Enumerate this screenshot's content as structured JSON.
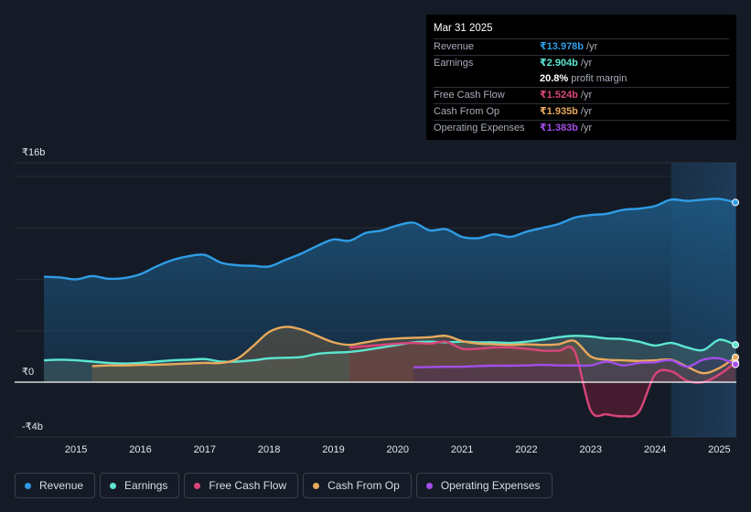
{
  "colors": {
    "revenue": "#2f9de6",
    "earnings": "#5ce6d0",
    "free_cash_flow": "#d8457a",
    "cash_from_op": "#e8a95c",
    "operating_expenses": "#a24ee8"
  },
  "tooltip": {
    "date": "Mar 31 2025",
    "rows": [
      {
        "label": "Revenue",
        "value": "₹13.978b",
        "unit": "/yr"
      },
      {
        "label": "Earnings",
        "value": "₹2.904b",
        "unit": "/yr"
      },
      {
        "label": "",
        "value": "20.8%",
        "unit": "profit margin"
      },
      {
        "label": "Free Cash Flow",
        "value": "₹1.524b",
        "unit": "/yr"
      },
      {
        "label": "Cash From Op",
        "value": "₹1.935b",
        "unit": "/yr"
      },
      {
        "label": "Operating Expenses",
        "value": "₹1.383b",
        "unit": "/yr"
      }
    ]
  },
  "legend": [
    {
      "label": "Revenue",
      "key": "revenue"
    },
    {
      "label": "Earnings",
      "key": "earnings"
    },
    {
      "label": "Free Cash Flow",
      "key": "free_cash_flow"
    },
    {
      "label": "Cash From Op",
      "key": "cash_from_op"
    },
    {
      "label": "Operating Expenses",
      "key": "operating_expenses"
    }
  ],
  "chart_data": {
    "type": "area",
    "title": "",
    "xlabel": "",
    "ylabel": "",
    "y_axis_labels": [
      "₹16b",
      "₹0",
      "-₹4b"
    ],
    "y_axis_values": [
      16,
      0,
      -4
    ],
    "ylim": [
      -4,
      16
    ],
    "xlim": [
      2014.5,
      2025.25
    ],
    "x_ticks": [
      "2015",
      "2016",
      "2017",
      "2018",
      "2019",
      "2020",
      "2021",
      "2022",
      "2023",
      "2024",
      "2025"
    ],
    "x_tick_values": [
      2015,
      2016,
      2017,
      2018,
      2019,
      2020,
      2021,
      2022,
      2023,
      2024,
      2025
    ],
    "highlight_from": 2024.25,
    "series": [
      {
        "name": "Revenue",
        "key": "revenue",
        "x": [
          2014.5,
          2014.75,
          2015.0,
          2015.25,
          2015.5,
          2015.75,
          2016.0,
          2016.25,
          2016.5,
          2016.75,
          2017.0,
          2017.25,
          2017.5,
          2017.75,
          2018.0,
          2018.25,
          2018.5,
          2018.75,
          2019.0,
          2019.25,
          2019.5,
          2019.75,
          2020.0,
          2020.25,
          2020.5,
          2020.75,
          2021.0,
          2021.25,
          2021.5,
          2021.75,
          2022.0,
          2022.25,
          2022.5,
          2022.75,
          2023.0,
          2023.25,
          2023.5,
          2023.75,
          2024.0,
          2024.25,
          2024.5,
          2024.75,
          2025.0,
          2025.25
        ],
        "values": [
          8.2,
          8.15,
          8.0,
          8.25,
          8.05,
          8.1,
          8.4,
          9.0,
          9.5,
          9.8,
          9.9,
          9.3,
          9.1,
          9.05,
          9.0,
          9.5,
          10.0,
          10.6,
          11.1,
          11.0,
          11.6,
          11.8,
          12.2,
          12.4,
          11.8,
          11.9,
          11.3,
          11.2,
          11.5,
          11.3,
          11.7,
          12.0,
          12.3,
          12.8,
          13.0,
          13.1,
          13.4,
          13.5,
          13.7,
          14.2,
          14.1,
          14.2,
          14.25,
          13.978
        ]
      },
      {
        "name": "Earnings",
        "key": "earnings",
        "x": [
          2014.5,
          2014.75,
          2015.0,
          2015.25,
          2015.5,
          2015.75,
          2016.0,
          2016.25,
          2016.5,
          2016.75,
          2017.0,
          2017.25,
          2017.5,
          2017.75,
          2018.0,
          2018.25,
          2018.5,
          2018.75,
          2019.0,
          2019.25,
          2019.5,
          2019.75,
          2020.0,
          2020.25,
          2020.5,
          2020.75,
          2021.0,
          2021.25,
          2021.5,
          2021.75,
          2022.0,
          2022.25,
          2022.5,
          2022.75,
          2023.0,
          2023.25,
          2023.5,
          2023.75,
          2024.0,
          2024.25,
          2024.5,
          2024.75,
          2025.0,
          2025.25
        ],
        "values": [
          1.7,
          1.75,
          1.7,
          1.6,
          1.5,
          1.45,
          1.5,
          1.6,
          1.7,
          1.75,
          1.8,
          1.6,
          1.6,
          1.7,
          1.85,
          1.9,
          1.95,
          2.2,
          2.3,
          2.35,
          2.5,
          2.7,
          2.9,
          3.1,
          3.15,
          3.1,
          3.15,
          3.1,
          3.1,
          3.05,
          3.15,
          3.3,
          3.5,
          3.6,
          3.55,
          3.4,
          3.35,
          3.15,
          2.85,
          3.05,
          2.7,
          2.5,
          3.3,
          2.904
        ]
      },
      {
        "name": "Free Cash Flow",
        "key": "free_cash_flow",
        "x": [
          2019.25,
          2019.5,
          2019.75,
          2020.0,
          2020.25,
          2020.5,
          2020.75,
          2021.0,
          2021.25,
          2021.5,
          2021.75,
          2022.0,
          2022.25,
          2022.5,
          2022.75,
          2023.0,
          2023.25,
          2023.5,
          2023.75,
          2024.0,
          2024.25,
          2024.5,
          2024.75,
          2025.0,
          2025.25
        ],
        "values": [
          2.7,
          2.8,
          2.9,
          3.0,
          3.05,
          3.0,
          3.15,
          2.6,
          2.6,
          2.7,
          2.7,
          2.6,
          2.45,
          2.45,
          2.4,
          -2.2,
          -2.5,
          -2.65,
          -2.3,
          0.6,
          0.85,
          0.1,
          0.0,
          0.6,
          1.524
        ]
      },
      {
        "name": "Cash From Op",
        "key": "cash_from_op",
        "x": [
          2015.25,
          2015.5,
          2015.75,
          2016.0,
          2016.25,
          2016.5,
          2016.75,
          2017.0,
          2017.25,
          2017.5,
          2017.75,
          2018.0,
          2018.25,
          2018.5,
          2018.75,
          2019.0,
          2019.25,
          2019.5,
          2019.75,
          2020.0,
          2020.25,
          2020.5,
          2020.75,
          2021.0,
          2021.25,
          2021.5,
          2021.75,
          2022.0,
          2022.25,
          2022.5,
          2022.75,
          2023.0,
          2023.25,
          2023.5,
          2023.75,
          2024.0,
          2024.25,
          2024.5,
          2024.75,
          2025.0,
          2025.25
        ],
        "values": [
          1.25,
          1.3,
          1.3,
          1.35,
          1.35,
          1.4,
          1.45,
          1.5,
          1.5,
          1.8,
          2.8,
          3.9,
          4.3,
          4.1,
          3.6,
          3.1,
          2.9,
          3.1,
          3.3,
          3.4,
          3.45,
          3.5,
          3.6,
          3.2,
          3.0,
          2.95,
          2.9,
          2.95,
          2.9,
          2.95,
          3.2,
          2.0,
          1.75,
          1.7,
          1.65,
          1.7,
          1.75,
          1.2,
          0.7,
          1.1,
          1.935
        ]
      },
      {
        "name": "Operating Expenses",
        "key": "operating_expenses",
        "x": [
          2020.25,
          2020.5,
          2020.75,
          2021.0,
          2021.25,
          2021.5,
          2021.75,
          2022.0,
          2022.25,
          2022.5,
          2022.75,
          2023.0,
          2023.25,
          2023.5,
          2023.75,
          2024.0,
          2024.25,
          2024.5,
          2024.75,
          2025.0,
          2025.25
        ],
        "values": [
          1.15,
          1.18,
          1.2,
          1.2,
          1.25,
          1.28,
          1.28,
          1.3,
          1.35,
          1.3,
          1.3,
          1.3,
          1.6,
          1.3,
          1.5,
          1.55,
          1.7,
          1.2,
          1.75,
          1.85,
          1.383
        ]
      }
    ]
  }
}
